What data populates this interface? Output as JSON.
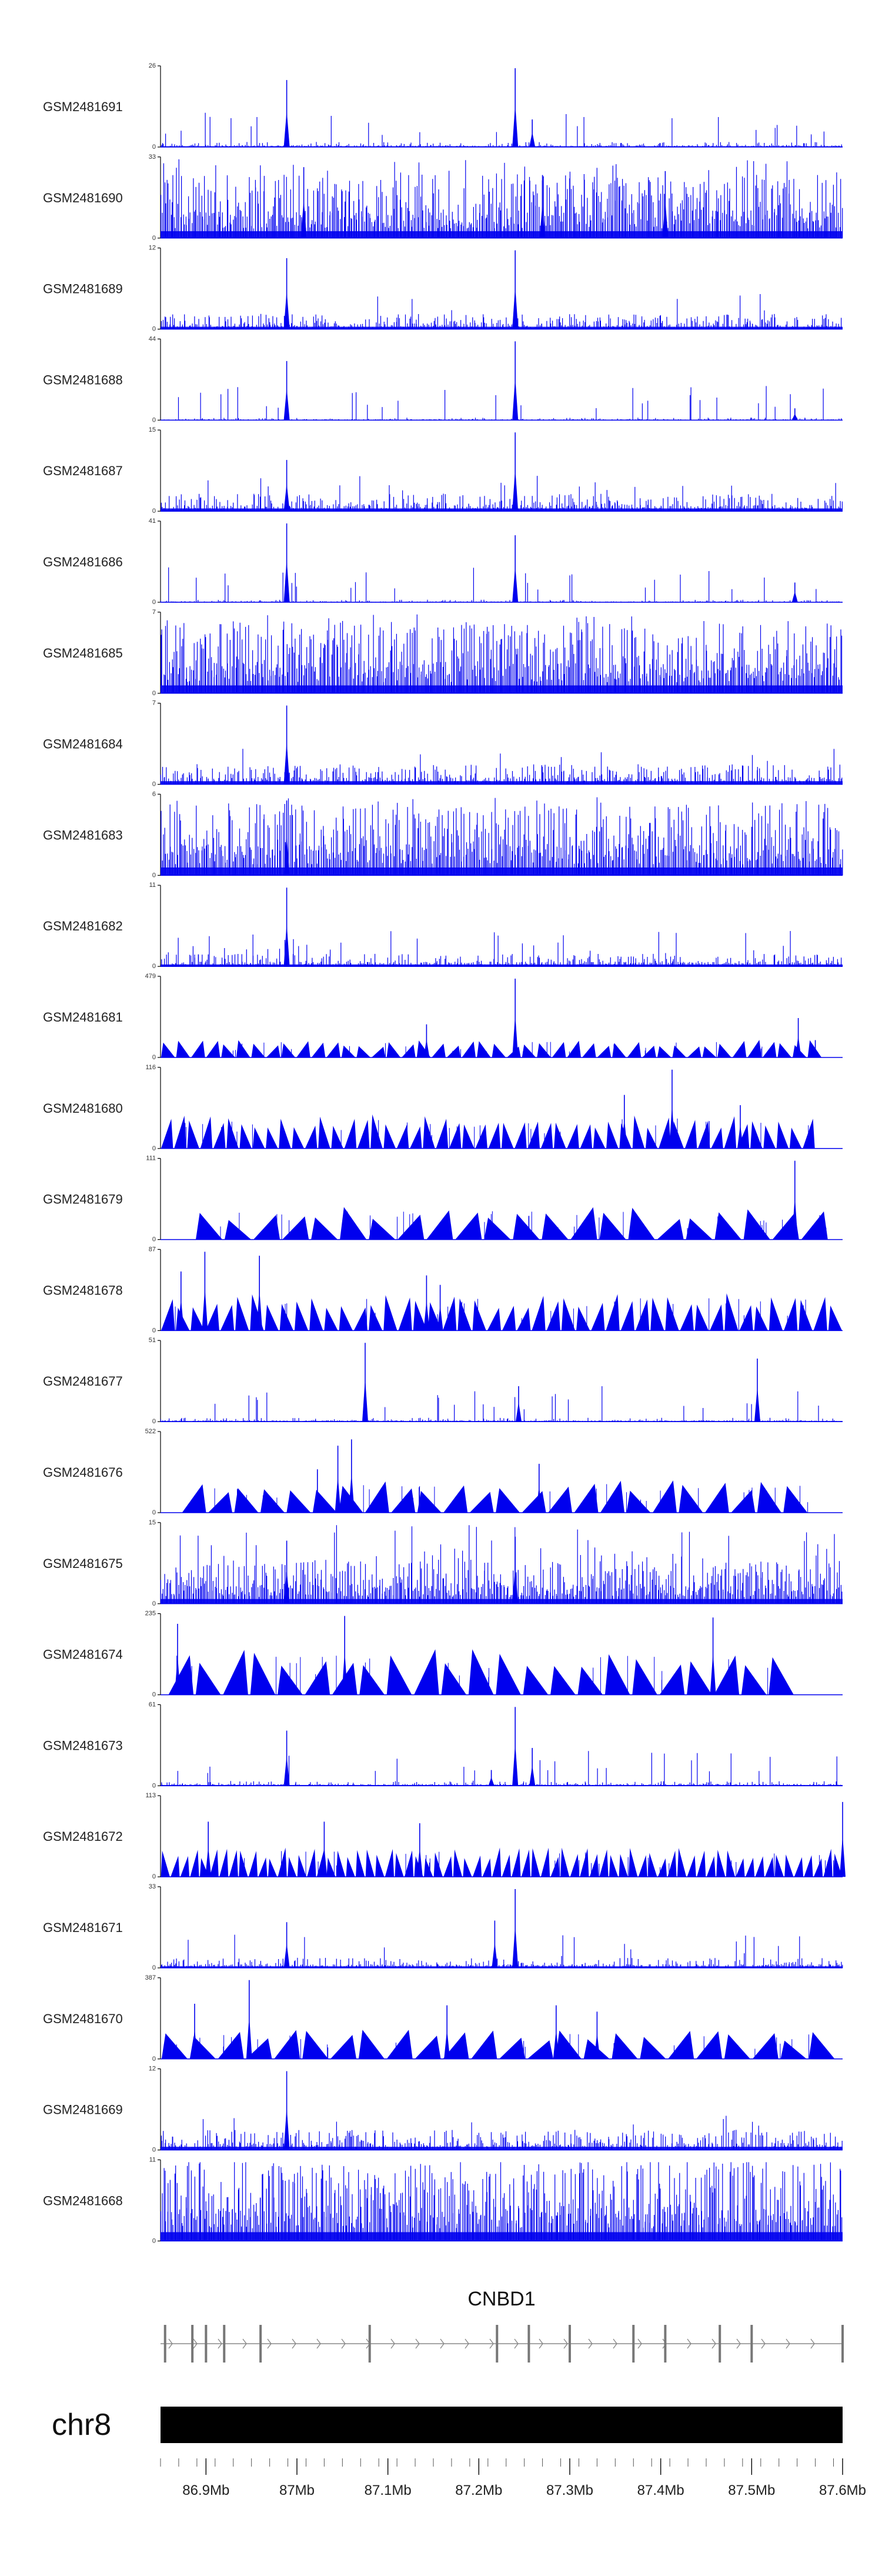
{
  "chart_data": {
    "type": "area",
    "colors": {
      "signal": "#0000ee",
      "axis": "#000000",
      "chromosome": "#000000",
      "gene": "#888888"
    },
    "tracks": [
      {
        "name": "GSM2481691",
        "ymax": 26,
        "style": "spiky",
        "density": 0.3,
        "noise": 0.04,
        "peaks": [
          [
            0.185,
            0.85
          ],
          [
            0.52,
            1.0
          ],
          [
            0.545,
            0.35
          ]
        ]
      },
      {
        "name": "GSM2481690",
        "ymax": 33,
        "style": "dense",
        "density": 0.85,
        "noise": 0.35,
        "peaks": [
          [
            0.21,
            0.9
          ],
          [
            0.56,
            0.8
          ],
          [
            0.74,
            0.85
          ]
        ]
      },
      {
        "name": "GSM2481689",
        "ymax": 12,
        "style": "spiky",
        "density": 0.55,
        "noise": 0.12,
        "peaks": [
          [
            0.185,
            0.9
          ],
          [
            0.52,
            1.0
          ]
        ]
      },
      {
        "name": "GSM2481688",
        "ymax": 44,
        "style": "spiky",
        "density": 0.25,
        "noise": 0.02,
        "peaks": [
          [
            0.185,
            0.75
          ],
          [
            0.52,
            1.0
          ],
          [
            0.93,
            0.15
          ]
        ]
      },
      {
        "name": "GSM2481687",
        "ymax": 15,
        "style": "spiky",
        "density": 0.5,
        "noise": 0.14,
        "peaks": [
          [
            0.185,
            0.65
          ],
          [
            0.52,
            1.0
          ]
        ]
      },
      {
        "name": "GSM2481686",
        "ymax": 41,
        "style": "spiky",
        "density": 0.25,
        "noise": 0.02,
        "peaks": [
          [
            0.185,
            1.0
          ],
          [
            0.52,
            0.85
          ],
          [
            0.93,
            0.25
          ]
        ]
      },
      {
        "name": "GSM2481685",
        "ymax": 7,
        "style": "dense",
        "density": 0.9,
        "noise": 0.4,
        "peaks": []
      },
      {
        "name": "GSM2481684",
        "ymax": 7,
        "style": "spiky",
        "density": 0.5,
        "noise": 0.16,
        "peaks": [
          [
            0.185,
            1.0
          ]
        ]
      },
      {
        "name": "GSM2481683",
        "ymax": 6,
        "style": "dense",
        "density": 0.85,
        "noise": 0.4,
        "peaks": [
          [
            0.185,
            0.95
          ]
        ]
      },
      {
        "name": "GSM2481682",
        "ymax": 11,
        "style": "spiky",
        "density": 0.4,
        "noise": 0.1,
        "peaks": [
          [
            0.185,
            1.0
          ]
        ]
      },
      {
        "name": "GSM2481681",
        "ymax": 479,
        "style": "triangles",
        "start": 0.0,
        "end": 0.97,
        "count": 44,
        "tri_h": 0.18,
        "peaks": [
          [
            0.39,
            0.42
          ],
          [
            0.52,
            1.0
          ],
          [
            0.935,
            0.5
          ],
          [
            0.96,
            0.22
          ]
        ]
      },
      {
        "name": "GSM2481680",
        "ymax": 116,
        "style": "triangles",
        "start": 0.0,
        "end": 0.96,
        "count": 50,
        "tri_h": 0.35,
        "peaks": [
          [
            0.68,
            0.68
          ],
          [
            0.75,
            1.0
          ],
          [
            0.85,
            0.55
          ]
        ]
      },
      {
        "name": "GSM2481679",
        "ymax": 111,
        "style": "triangles",
        "start": 0.05,
        "end": 0.98,
        "count": 22,
        "tri_h": 0.33,
        "peaks": [
          [
            0.93,
            1.0
          ],
          [
            0.54,
            0.3
          ]
        ]
      },
      {
        "name": "GSM2481678",
        "ymax": 87,
        "style": "triangles",
        "start": 0.0,
        "end": 1.0,
        "count": 46,
        "tri_h": 0.38,
        "peaks": [
          [
            0.03,
            0.75
          ],
          [
            0.065,
            1.0
          ],
          [
            0.145,
            0.95
          ],
          [
            0.39,
            0.7
          ],
          [
            0.41,
            0.58
          ]
        ]
      },
      {
        "name": "GSM2481677",
        "ymax": 51,
        "style": "spiky",
        "density": 0.22,
        "noise": 0.03,
        "peaks": [
          [
            0.3,
            1.0
          ],
          [
            0.525,
            0.45
          ],
          [
            0.875,
            0.8
          ]
        ]
      },
      {
        "name": "GSM2481676",
        "ymax": 522,
        "style": "triangles",
        "start": 0.03,
        "end": 0.95,
        "count": 24,
        "tri_h": 0.33,
        "peaks": [
          [
            0.26,
            0.85
          ],
          [
            0.28,
            0.93
          ],
          [
            0.555,
            0.62
          ],
          [
            0.23,
            0.55
          ]
        ]
      },
      {
        "name": "GSM2481675",
        "ymax": 15,
        "style": "dense",
        "density": 0.75,
        "noise": 0.24,
        "peaks": [
          [
            0.185,
            0.8
          ],
          [
            0.52,
            0.85
          ]
        ]
      },
      {
        "name": "GSM2481674",
        "ymax": 235,
        "style": "triangles",
        "start": 0.01,
        "end": 0.93,
        "count": 23,
        "tri_h": 0.47,
        "peaks": [
          [
            0.025,
            0.9
          ],
          [
            0.27,
            1.0
          ],
          [
            0.81,
            0.98
          ]
        ]
      },
      {
        "name": "GSM2481673",
        "ymax": 61,
        "style": "spiky",
        "density": 0.25,
        "noise": 0.04,
        "peaks": [
          [
            0.185,
            0.7
          ],
          [
            0.52,
            1.0
          ],
          [
            0.545,
            0.48
          ],
          [
            0.485,
            0.2
          ]
        ]
      },
      {
        "name": "GSM2481672",
        "ymax": 113,
        "style": "triangles",
        "start": 0.0,
        "end": 1.0,
        "count": 70,
        "tri_h": 0.3,
        "peaks": [
          [
            0.07,
            0.7
          ],
          [
            0.24,
            0.7
          ],
          [
            0.38,
            0.68
          ],
          [
            1.0,
            0.95
          ]
        ]
      },
      {
        "name": "GSM2481671",
        "ymax": 33,
        "style": "spiky",
        "density": 0.35,
        "noise": 0.08,
        "peaks": [
          [
            0.185,
            0.58
          ],
          [
            0.52,
            1.0
          ],
          [
            0.49,
            0.6
          ]
        ]
      },
      {
        "name": "GSM2481670",
        "ymax": 387,
        "style": "triangles",
        "start": 0.0,
        "end": 0.99,
        "count": 24,
        "tri_h": 0.3,
        "peaks": [
          [
            0.05,
            0.7
          ],
          [
            0.13,
            1.0
          ],
          [
            0.42,
            0.68
          ],
          [
            0.58,
            0.68
          ],
          [
            0.64,
            0.6
          ]
        ]
      },
      {
        "name": "GSM2481669",
        "ymax": 12,
        "style": "spiky",
        "density": 0.55,
        "noise": 0.16,
        "peaks": [
          [
            0.185,
            1.0
          ]
        ]
      },
      {
        "name": "GSM2481668",
        "ymax": 11,
        "style": "dense",
        "density": 0.85,
        "noise": 0.45,
        "peaks": []
      }
    ],
    "gene": {
      "name": "CNBD1",
      "strand": "+",
      "start_mb": 86.85,
      "end_mb": 87.6,
      "exons_mb": [
        86.855,
        86.885,
        86.9,
        86.92,
        86.96,
        87.08,
        87.22,
        87.255,
        87.3,
        87.37,
        87.405,
        87.465,
        87.5,
        87.6
      ]
    },
    "chromosome": "chr8",
    "x_axis": {
      "range_mb": [
        86.85,
        87.6
      ],
      "ticks_mb": [
        86.9,
        87.0,
        87.1,
        87.2,
        87.3,
        87.4,
        87.5,
        87.6
      ],
      "tick_labels": [
        "86.9Mb",
        "87Mb",
        "87.1Mb",
        "87.2Mb",
        "87.3Mb",
        "87.4Mb",
        "87.5Mb",
        "87.6Mb"
      ],
      "minor_step_mb": 0.02
    }
  }
}
